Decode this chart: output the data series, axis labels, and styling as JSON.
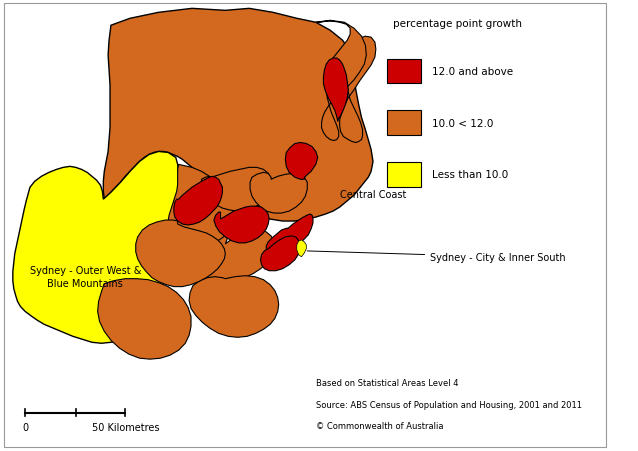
{
  "legend_title": "percentage point growth",
  "legend_items": [
    {
      "label": "12.0 and above",
      "color": "#CC0000"
    },
    {
      "label": "10.0 < 12.0",
      "color": "#D2691E"
    },
    {
      "label": "Less than 10.0",
      "color": "#FFFF00"
    }
  ],
  "colors": {
    "red": "#CC0000",
    "orange": "#D2691E",
    "yellow": "#FFFF00",
    "border": "#000000",
    "bg": "#FFFFFF"
  },
  "fig_width": 6.38,
  "fig_height": 4.52,
  "dpi": 100,
  "footnote_lines": [
    "Based on Statistical Areas Level 4",
    "Source: ABS Census of Population and Housing, 2001 and 2011",
    "© Commonwealth of Australia"
  ]
}
